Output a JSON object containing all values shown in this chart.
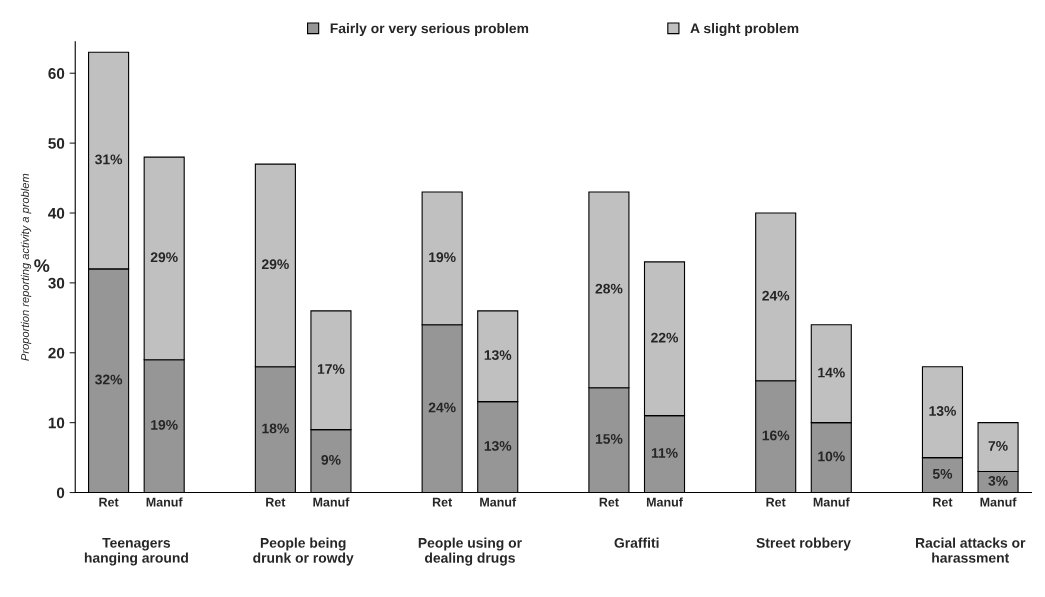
{
  "chart_data": {
    "type": "bar",
    "stacked": true,
    "categories": [
      "Ret",
      "Manuf",
      null,
      "Ret",
      "Manuf",
      null,
      "Ret",
      "Manuf",
      null,
      "Ret",
      "Manuf",
      null,
      "Ret",
      "Manuf",
      null,
      "Ret",
      "Manuf"
    ],
    "series": [
      {
        "name": "Fairly or very serious problem",
        "color": "#969696",
        "values": [
          32,
          19,
          null,
          18,
          9,
          null,
          24,
          13,
          null,
          15,
          11,
          null,
          16,
          10,
          null,
          5,
          3
        ],
        "value_labels": [
          "32%",
          "19%",
          null,
          "18%",
          "9%",
          null,
          "24%",
          "13%",
          null,
          "15%",
          "11%",
          null,
          "16%",
          "10%",
          null,
          "5%",
          "3%"
        ]
      },
      {
        "name": "A slight problem",
        "color": "#c0c0c0",
        "values": [
          31,
          29,
          null,
          29,
          17,
          null,
          19,
          13,
          null,
          28,
          22,
          null,
          24,
          14,
          null,
          13,
          7
        ],
        "value_labels": [
          "31%",
          "29%",
          null,
          "29%",
          "17%",
          null,
          "19%",
          "13%",
          null,
          "28%",
          "22%",
          null,
          "24%",
          "14%",
          null,
          "13%",
          "7%"
        ]
      }
    ],
    "ylim": [
      0,
      64.5
    ],
    "yticks": [
      0,
      10,
      20,
      30,
      40,
      50,
      60
    ],
    "ylabel": "Proportion reporting activity a problem",
    "annotations": [
      "Teenagers\nhanging around",
      "People being\ndrunk or rowdy",
      "People using or\ndealing drugs",
      "Graffiti",
      "Street robbery",
      "Racial attacks or\nharassment",
      "%"
    ],
    "legend": "top",
    "grid": false
  }
}
